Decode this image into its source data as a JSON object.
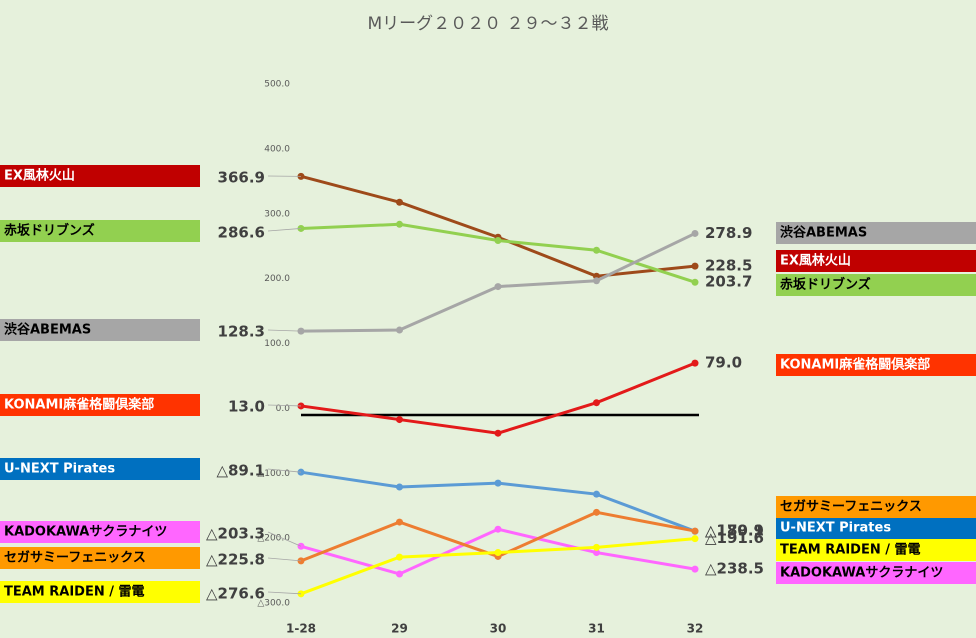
{
  "chart_data": {
    "type": "line",
    "title": "Mリーグ２０２０ ２９～３２戦",
    "categories": [
      "1-28",
      "29",
      "30",
      "31",
      "32"
    ],
    "ylim": [
      -300,
      500
    ],
    "yticks": [
      {
        "value": 500,
        "label": "500.0"
      },
      {
        "value": 400,
        "label": "400.0"
      },
      {
        "value": 300,
        "label": "300.0"
      },
      {
        "value": 200,
        "label": "200.0"
      },
      {
        "value": 100,
        "label": "100.0"
      },
      {
        "value": 0,
        "label": "0.0"
      },
      {
        "value": -100,
        "label": "△100.0"
      },
      {
        "value": -200,
        "label": "△200.0"
      },
      {
        "value": -300,
        "label": "△300.0"
      }
    ],
    "grid": false,
    "series": [
      {
        "name": "EX風林火山",
        "color": "#9e4a1a",
        "box_color": "#c00000",
        "values": [
          366.9,
          327,
          273,
          213,
          228.5
        ],
        "value_labels": [
          "366.9",
          null,
          null,
          null,
          "228.5"
        ]
      },
      {
        "name": "赤坂ドリブンズ",
        "color": "#92d050",
        "box_color": "#92d050",
        "values": [
          286.6,
          293,
          268,
          253,
          203.7
        ],
        "value_labels": [
          "286.6",
          null,
          null,
          null,
          "203.7"
        ]
      },
      {
        "name": "渋谷ABEMAS",
        "color": "#a6a6a6",
        "box_color": "#a6a6a6",
        "values": [
          128.3,
          130,
          197,
          206,
          278.9
        ],
        "value_labels": [
          "128.3",
          null,
          null,
          null,
          "278.9"
        ]
      },
      {
        "name": "KONAMI麻雀格闘倶楽部",
        "color": "#e31a1a",
        "box_color": "#ff3300",
        "values": [
          13.0,
          -8,
          -29,
          18,
          79.0
        ],
        "value_labels": [
          "13.0",
          null,
          null,
          null,
          "79.0"
        ]
      },
      {
        "name": "U-NEXT Pirates",
        "color": "#5b9bd5",
        "box_color": "#0070c0",
        "values": [
          -89.1,
          -112,
          -106,
          -123,
          -180.1
        ],
        "value_labels": [
          "△89.1",
          null,
          null,
          null,
          "△180.1"
        ]
      },
      {
        "name": "KADOKAWAサクラナイツ",
        "color": "#ff66ff",
        "box_color": "#ff66ff",
        "values": [
          -203.3,
          -246,
          -177,
          -213,
          -238.5
        ],
        "value_labels": [
          "△203.3",
          null,
          null,
          null,
          "△238.5"
        ]
      },
      {
        "name": "セガサミーフェニックス",
        "color": "#ed7d31",
        "box_color": "#ff9900",
        "values": [
          -225.8,
          -166,
          -219,
          -151,
          -179.9
        ],
        "value_labels": [
          "△225.8",
          null,
          null,
          null,
          "△179.9"
        ]
      },
      {
        "name": "TEAM RAIDEN / 雷電",
        "color": "#ffff00",
        "box_color": "#ffff00",
        "values": [
          -276.6,
          -220,
          -213,
          -205,
          -191.6
        ],
        "value_labels": [
          "△276.6",
          null,
          null,
          null,
          "△191.6"
        ]
      }
    ]
  }
}
